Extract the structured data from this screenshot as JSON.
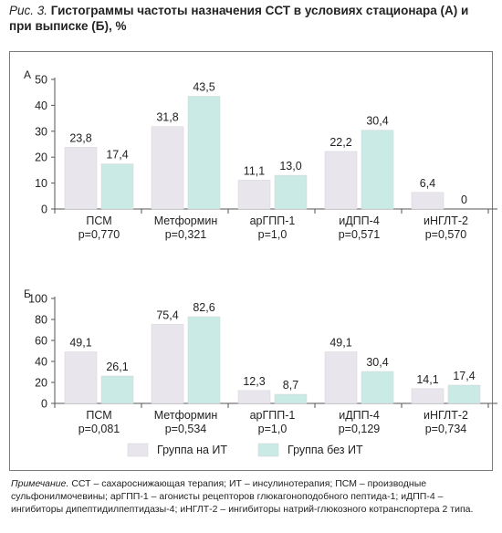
{
  "figure": {
    "caption_lead": "Рис. 3.",
    "caption_text": "Гистограммы частоты назначения ССТ в условиях стационара (А) и при выписке (Б), %"
  },
  "note": {
    "lead": "Примечание.",
    "text": "ССТ – сахароснижающая терапия; ИТ – инсулинотерапия; ПСМ – производные сульфонилмочевины; арГПП-1 – агонисты рецепторов глюкагоноподобного пептида-1; иДПП-4 – ингибиторы дипептидилпептидазы-4; иНГЛТ-2 – ингибиторы натрий-глюкозного котранспортера 2 типа."
  },
  "colors": {
    "with_it": "#e9e5ec",
    "without_it": "#c9eae5",
    "bar_edge": "#d6d3d9",
    "axis": "#555555"
  },
  "chart_data": [
    {
      "type": "bar",
      "panel_label": "А",
      "categories": [
        "ПСМ",
        "Метформин",
        "арГПП-1",
        "иДПП-4",
        "иНГЛТ-2"
      ],
      "p_values": [
        "p=0,770",
        "p=0,321",
        "p=1,0",
        "p=0,571",
        "p=0,570"
      ],
      "series": [
        {
          "name": "Группа на ИТ",
          "values": [
            23.8,
            31.8,
            11.1,
            22.2,
            6.4
          ],
          "labels": [
            "23,8",
            "31,8",
            "11,1",
            "22,2",
            "6,4"
          ]
        },
        {
          "name": "Группа без ИТ",
          "values": [
            17.4,
            43.5,
            13.0,
            30.4,
            0
          ],
          "labels": [
            "17,4",
            "43,5",
            "13,0",
            "30,4",
            "0"
          ]
        }
      ],
      "ylim": [
        0,
        50
      ],
      "yticks": [
        "0",
        "10",
        "20",
        "30",
        "40",
        "50"
      ]
    },
    {
      "type": "bar",
      "panel_label": "Б",
      "categories": [
        "ПСМ",
        "Метформин",
        "арГПП-1",
        "иДПП-4",
        "иНГЛТ-2"
      ],
      "p_values": [
        "p=0,081",
        "p=0,534",
        "p=1,0",
        "p=0,129",
        "p=0,734"
      ],
      "series": [
        {
          "name": "Группа на ИТ",
          "values": [
            49.1,
            75.4,
            12.3,
            49.1,
            14.1
          ],
          "labels": [
            "49,1",
            "75,4",
            "12,3",
            "49,1",
            "14,1"
          ]
        },
        {
          "name": "Группа без ИТ",
          "values": [
            26.1,
            82.6,
            8.7,
            30.4,
            17.4
          ],
          "labels": [
            "26,1",
            "82,6",
            "8,7",
            "30,4",
            "17,4"
          ]
        }
      ],
      "ylim": [
        0,
        100
      ],
      "yticks": [
        "0",
        "20",
        "40",
        "60",
        "80",
        "100"
      ]
    }
  ],
  "legend": [
    {
      "label": "Группа на ИТ"
    },
    {
      "label": "Группа без ИТ"
    }
  ]
}
